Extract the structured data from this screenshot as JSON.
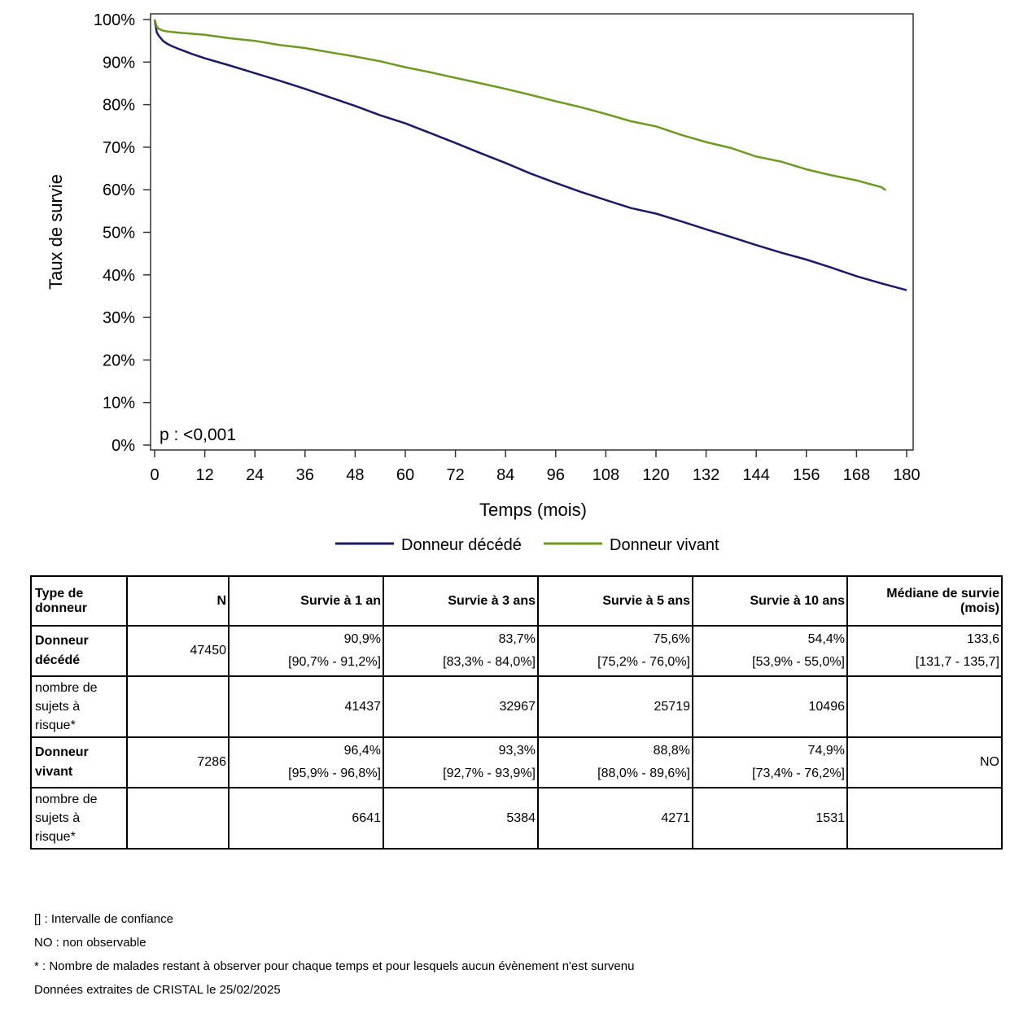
{
  "chart_data": {
    "type": "line",
    "ylabel": "Taux de survie",
    "xlabel": "Temps (mois)",
    "xlim": [
      0,
      180
    ],
    "ylim": [
      0,
      100
    ],
    "x_ticks": [
      "0",
      "12",
      "24",
      "36",
      "48",
      "60",
      "72",
      "84",
      "96",
      "108",
      "120",
      "132",
      "144",
      "156",
      "168",
      "180"
    ],
    "y_ticks": [
      "0%",
      "10%",
      "20%",
      "30%",
      "40%",
      "50%",
      "60%",
      "70%",
      "80%",
      "90%",
      "100%"
    ],
    "annotation": "p : <0,001",
    "legend_position": "bottom",
    "series": [
      {
        "name": "Donneur décédé",
        "color": "#1a1a66",
        "x": [
          0,
          0.5,
          1,
          2,
          3,
          4,
          6,
          9,
          12,
          18,
          24,
          30,
          36,
          42,
          48,
          54,
          60,
          66,
          72,
          78,
          84,
          90,
          96,
          102,
          108,
          114,
          120,
          126,
          132,
          138,
          144,
          150,
          156,
          162,
          168,
          174,
          180
        ],
        "y": [
          100,
          97,
          96.2,
          95,
          94.3,
          93.8,
          93,
          91.9,
          90.9,
          89.2,
          87.4,
          85.6,
          83.7,
          81.7,
          79.7,
          77.5,
          75.6,
          73.3,
          71,
          68.6,
          66.3,
          63.8,
          61.6,
          59.5,
          57.6,
          55.7,
          54.4,
          52.6,
          50.7,
          48.9,
          47,
          45.2,
          43.6,
          41.7,
          39.7,
          38,
          36.4
        ]
      },
      {
        "name": "Donneur vivant",
        "color": "#6b9a1f",
        "x": [
          0,
          0.5,
          1,
          2,
          3,
          6,
          12,
          18,
          24,
          30,
          36,
          42,
          48,
          54,
          60,
          66,
          72,
          78,
          84,
          90,
          96,
          102,
          108,
          114,
          120,
          126,
          132,
          138,
          144,
          150,
          156,
          162,
          168,
          174,
          175
        ],
        "y": [
          100,
          98.3,
          97.8,
          97.4,
          97.2,
          96.9,
          96.4,
          95.6,
          95,
          94,
          93.3,
          92.3,
          91.3,
          90.2,
          88.8,
          87.6,
          86.3,
          85,
          83.7,
          82.3,
          80.8,
          79.4,
          77.8,
          76.1,
          74.9,
          72.9,
          71.2,
          69.8,
          67.8,
          66.6,
          64.8,
          63.4,
          62.2,
          60.6,
          59.9
        ]
      }
    ]
  },
  "table": {
    "headers": [
      "Type de donneur",
      "N",
      "Survie à 1 an",
      "Survie à 3 ans",
      "Survie à 5 ans",
      "Survie à 10 ans",
      "Médiane de survie (mois)"
    ],
    "rows": {
      "dd": {
        "type": [
          "Donneur",
          "décédé"
        ],
        "n": "47450",
        "s1": "90,9%",
        "s1_ci": "[90,7% - 91,2%]",
        "s3": "83,7%",
        "s3_ci": "[83,3% - 84,0%]",
        "s5": "75,6%",
        "s5_ci": "[75,2% - 76,0%]",
        "s10": "54,4%",
        "s10_ci": "[53,9% - 55,0%]",
        "median": "133,6",
        "median_ci": "[131,7 - 135,7]"
      },
      "dd_risk": {
        "label": [
          "nombre de",
          "sujets à",
          "risque*"
        ],
        "r1": "41437",
        "r3": "32967",
        "r5": "25719",
        "r10": "10496"
      },
      "dv": {
        "type": [
          "Donneur",
          "vivant"
        ],
        "n": "7286",
        "s1": "96,4%",
        "s1_ci": "[95,9% - 96,8%]",
        "s3": "93,3%",
        "s3_ci": "[92,7% - 93,9%]",
        "s5": "88,8%",
        "s5_ci": "[88,0% - 89,6%]",
        "s10": "74,9%",
        "s10_ci": "[73,4% - 76,2%]",
        "median": "NO"
      },
      "dv_risk": {
        "label": [
          "nombre de",
          "sujets à",
          "risque*"
        ],
        "r1": "6641",
        "r3": "5384",
        "r5": "4271",
        "r10": "1531"
      }
    }
  },
  "notes": [
    "[] : Intervalle de confiance",
    "NO : non observable",
    "* : Nombre de malades restant à observer pour chaque temps et pour lesquels aucun évènement n'est survenu",
    "Données extraites de CRISTAL le 25/02/2025"
  ]
}
